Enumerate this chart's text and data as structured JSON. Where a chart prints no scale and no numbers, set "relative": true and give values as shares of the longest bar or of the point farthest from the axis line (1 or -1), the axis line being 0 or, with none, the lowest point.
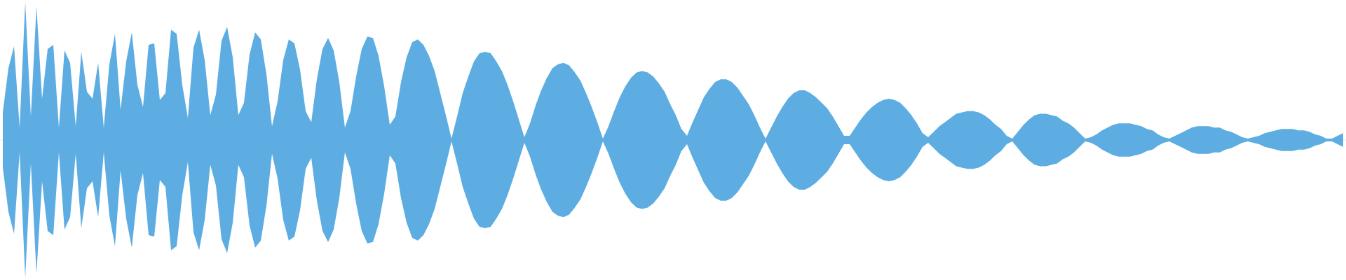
{
  "chart_data": {
    "type": "area",
    "relative": true,
    "tick_labels": false,
    "categories": [
      null,
      null,
      null,
      null,
      null,
      null,
      null,
      null,
      null,
      null,
      null,
      null,
      null,
      null,
      null,
      null,
      null,
      null,
      null,
      null,
      null,
      null,
      null,
      null,
      null,
      null,
      null,
      null,
      null,
      null,
      null,
      null,
      null,
      null,
      null,
      null,
      null,
      null,
      null,
      null,
      null,
      null,
      null,
      null,
      null,
      null,
      null,
      null,
      null,
      null,
      null,
      null,
      null,
      null,
      null,
      null,
      null,
      null,
      null,
      null,
      null,
      null,
      null,
      null,
      null,
      null,
      null,
      null,
      null,
      null,
      null,
      null,
      null,
      null,
      null,
      null,
      null,
      null,
      null,
      null,
      null,
      null,
      null,
      null,
      null,
      null,
      null,
      null,
      null,
      null,
      null,
      null,
      null,
      null,
      null,
      null,
      null,
      null,
      null,
      null,
      null,
      null,
      null,
      null,
      null,
      null,
      null,
      null,
      null,
      null,
      null,
      null,
      null,
      null,
      null,
      null,
      null,
      null,
      null,
      null,
      null,
      null,
      null,
      null,
      null,
      null,
      null,
      null,
      null,
      null,
      null,
      null,
      null,
      null,
      null,
      null,
      null,
      null,
      null,
      null,
      null,
      null,
      null,
      null,
      null,
      null,
      null,
      null,
      null,
      null,
      null,
      null,
      null,
      null,
      null,
      null,
      null,
      null,
      null,
      null,
      null,
      null,
      null,
      null,
      null,
      null,
      null,
      null,
      null,
      null,
      null,
      null,
      null,
      null,
      null,
      null,
      null,
      null,
      null,
      null,
      null,
      null,
      null,
      null,
      null,
      null,
      null,
      null,
      null,
      null,
      null,
      null,
      null,
      null,
      null,
      null,
      null,
      null,
      null,
      null,
      null,
      null,
      null,
      null,
      null,
      null,
      null,
      null,
      null,
      null,
      null,
      null,
      null,
      null,
      null,
      null,
      null,
      null,
      null,
      null,
      null,
      null,
      null,
      null,
      null,
      null,
      null,
      null,
      null,
      null,
      null,
      null,
      null,
      null,
      null,
      null,
      null,
      null,
      null,
      null
    ],
    "series": [
      {
        "color": "#5dade2",
        "values": [
          0.2,
          0.52,
          0.68,
          0.09,
          1.0,
          0.17,
          0.97,
          0.3,
          0.66,
          0.69,
          0.09,
          0.65,
          0.56,
          0.1,
          0.64,
          0.35,
          0.3,
          0.56,
          0.09,
          0.55,
          0.77,
          0.22,
          0.57,
          0.78,
          0.4,
          0.24,
          0.69,
          0.7,
          0.29,
          0.34,
          0.8,
          0.77,
          0.4,
          0.16,
          0.67,
          0.8,
          0.58,
          0.18,
          0.33,
          0.72,
          0.82,
          0.6,
          0.18,
          0.27,
          0.62,
          0.78,
          0.73,
          0.48,
          0.1,
          0.28,
          0.58,
          0.73,
          0.7,
          0.51,
          0.21,
          0.13,
          0.44,
          0.66,
          0.74,
          0.65,
          0.42,
          0.09,
          0.21,
          0.46,
          0.66,
          0.75,
          0.74,
          0.61,
          0.39,
          0.11,
          0.17,
          0.42,
          0.6,
          0.71,
          0.73,
          0.69,
          0.61,
          0.5,
          0.34,
          0.18,
          0.01,
          0.17,
          0.34,
          0.46,
          0.57,
          0.63,
          0.64,
          0.63,
          0.57,
          0.5,
          0.4,
          0.28,
          0.15,
          0.02,
          0.12,
          0.25,
          0.36,
          0.45,
          0.52,
          0.55,
          0.56,
          0.54,
          0.49,
          0.43,
          0.34,
          0.24,
          0.13,
          0.01,
          0.1,
          0.21,
          0.31,
          0.39,
          0.45,
          0.49,
          0.5,
          0.49,
          0.46,
          0.41,
          0.35,
          0.26,
          0.18,
          0.08,
          0.03,
          0.13,
          0.22,
          0.31,
          0.37,
          0.42,
          0.44,
          0.44,
          0.42,
          0.38,
          0.32,
          0.26,
          0.18,
          0.09,
          0.01,
          0.09,
          0.17,
          0.24,
          0.3,
          0.34,
          0.36,
          0.36,
          0.34,
          0.31,
          0.27,
          0.23,
          0.17,
          0.1,
          0.03,
          0.03,
          0.09,
          0.15,
          0.2,
          0.24,
          0.27,
          0.29,
          0.3,
          0.29,
          0.27,
          0.23,
          0.18,
          0.12,
          0.05,
          0.02,
          0.06,
          0.1,
          0.13,
          0.16,
          0.19,
          0.2,
          0.21,
          0.21,
          0.2,
          0.18,
          0.15,
          0.11,
          0.08,
          0.03,
          0.01,
          0.06,
          0.11,
          0.15,
          0.18,
          0.19,
          0.19,
          0.18,
          0.17,
          0.14,
          0.12,
          0.09,
          0.05,
          0.01,
          0.02,
          0.04,
          0.07,
          0.09,
          0.11,
          0.12,
          0.12,
          0.12,
          0.11,
          0.1,
          0.08,
          0.07,
          0.04,
          0.02,
          0.01,
          0.03,
          0.05,
          0.07,
          0.09,
          0.1,
          0.1,
          0.1,
          0.09,
          0.09,
          0.07,
          0.06,
          0.04,
          0.02,
          0.01,
          0.02,
          0.03,
          0.05,
          0.06,
          0.07,
          0.08,
          0.08,
          0.08,
          0.07,
          0.07,
          0.06,
          0.04,
          0.03,
          0.01,
          0.01,
          0.03,
          0.05
        ]
      },
      {
        "color": "#5dade2",
        "values": [
          -0.2,
          -0.52,
          -0.68,
          -0.09,
          -1.0,
          -0.17,
          -0.97,
          -0.3,
          -0.66,
          -0.69,
          -0.09,
          -0.65,
          -0.56,
          -0.1,
          -0.64,
          -0.35,
          -0.3,
          -0.56,
          -0.09,
          -0.55,
          -0.77,
          -0.22,
          -0.57,
          -0.78,
          -0.4,
          -0.24,
          -0.69,
          -0.7,
          -0.29,
          -0.34,
          -0.8,
          -0.77,
          -0.4,
          -0.16,
          -0.67,
          -0.8,
          -0.58,
          -0.18,
          -0.33,
          -0.72,
          -0.82,
          -0.6,
          -0.18,
          -0.27,
          -0.62,
          -0.78,
          -0.73,
          -0.48,
          -0.1,
          -0.28,
          -0.58,
          -0.73,
          -0.7,
          -0.51,
          -0.21,
          -0.13,
          -0.44,
          -0.66,
          -0.74,
          -0.65,
          -0.42,
          -0.09,
          -0.21,
          -0.46,
          -0.66,
          -0.75,
          -0.74,
          -0.61,
          -0.39,
          -0.11,
          -0.17,
          -0.42,
          -0.6,
          -0.71,
          -0.73,
          -0.69,
          -0.61,
          -0.5,
          -0.34,
          -0.18,
          -0.01,
          -0.17,
          -0.34,
          -0.46,
          -0.57,
          -0.63,
          -0.64,
          -0.63,
          -0.57,
          -0.5,
          -0.4,
          -0.28,
          -0.15,
          -0.02,
          -0.12,
          -0.25,
          -0.36,
          -0.45,
          -0.52,
          -0.55,
          -0.56,
          -0.54,
          -0.49,
          -0.43,
          -0.34,
          -0.24,
          -0.13,
          -0.01,
          -0.1,
          -0.21,
          -0.31,
          -0.39,
          -0.45,
          -0.49,
          -0.5,
          -0.49,
          -0.46,
          -0.41,
          -0.35,
          -0.26,
          -0.18,
          -0.08,
          -0.03,
          -0.13,
          -0.22,
          -0.31,
          -0.37,
          -0.42,
          -0.44,
          -0.44,
          -0.42,
          -0.38,
          -0.32,
          -0.26,
          -0.18,
          -0.09,
          -0.01,
          -0.09,
          -0.17,
          -0.24,
          -0.3,
          -0.34,
          -0.36,
          -0.36,
          -0.34,
          -0.31,
          -0.27,
          -0.23,
          -0.17,
          -0.1,
          -0.03,
          -0.03,
          -0.09,
          -0.15,
          -0.2,
          -0.24,
          -0.27,
          -0.29,
          -0.3,
          -0.29,
          -0.27,
          -0.23,
          -0.18,
          -0.12,
          -0.05,
          -0.02,
          -0.06,
          -0.1,
          -0.13,
          -0.16,
          -0.19,
          -0.2,
          -0.21,
          -0.21,
          -0.2,
          -0.18,
          -0.15,
          -0.11,
          -0.08,
          -0.03,
          -0.01,
          -0.06,
          -0.11,
          -0.15,
          -0.18,
          -0.19,
          -0.19,
          -0.18,
          -0.17,
          -0.14,
          -0.12,
          -0.09,
          -0.05,
          -0.01,
          -0.02,
          -0.04,
          -0.07,
          -0.09,
          -0.11,
          -0.12,
          -0.12,
          -0.12,
          -0.11,
          -0.1,
          -0.08,
          -0.07,
          -0.04,
          -0.02,
          -0.01,
          -0.03,
          -0.05,
          -0.07,
          -0.09,
          -0.1,
          -0.1,
          -0.1,
          -0.09,
          -0.09,
          -0.07,
          -0.06,
          -0.04,
          -0.02,
          -0.01,
          -0.02,
          -0.03,
          -0.05,
          -0.06,
          -0.07,
          -0.08,
          -0.08,
          -0.08,
          -0.07,
          -0.07,
          -0.06,
          -0.04,
          -0.03,
          -0.01,
          -0.01,
          -0.03,
          -0.05
        ]
      }
    ]
  }
}
